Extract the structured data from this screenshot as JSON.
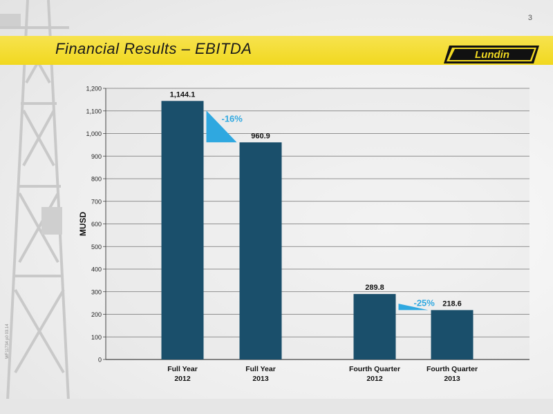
{
  "page_number": "3",
  "title": "Financial Results – EBITDA",
  "logo_text": "Lundin",
  "footer_code": "WF11734 p0 03.14",
  "colors": {
    "bar": "#1a4f6b",
    "accent": "#2fa8e0",
    "title_bar": "#f2da22"
  },
  "chart_data": {
    "type": "bar",
    "ylabel": "MUSD",
    "ylim": [
      0,
      1200
    ],
    "yticks": [
      0,
      100,
      200,
      300,
      400,
      500,
      600,
      700,
      800,
      900,
      1000,
      1100,
      1200
    ],
    "ytick_labels": [
      "0",
      "100",
      "200",
      "300",
      "400",
      "500",
      "600",
      "700",
      "800",
      "900",
      "1,000",
      "1,100",
      "1,200"
    ],
    "categories": [
      [
        "Full Year",
        "2012"
      ],
      [
        "Full Year",
        "2013"
      ],
      [
        "Fourth Quarter",
        "2012"
      ],
      [
        "Fourth Quarter",
        "2013"
      ]
    ],
    "values": [
      1144.1,
      960.9,
      289.8,
      218.6
    ],
    "value_labels": [
      "1,144.1",
      "960.9",
      "289.8",
      "218.6"
    ],
    "changes": [
      {
        "label": "-16%",
        "from": 0,
        "to": 1
      },
      {
        "label": "-25%",
        "from": 2,
        "to": 3
      }
    ],
    "grid": true
  }
}
